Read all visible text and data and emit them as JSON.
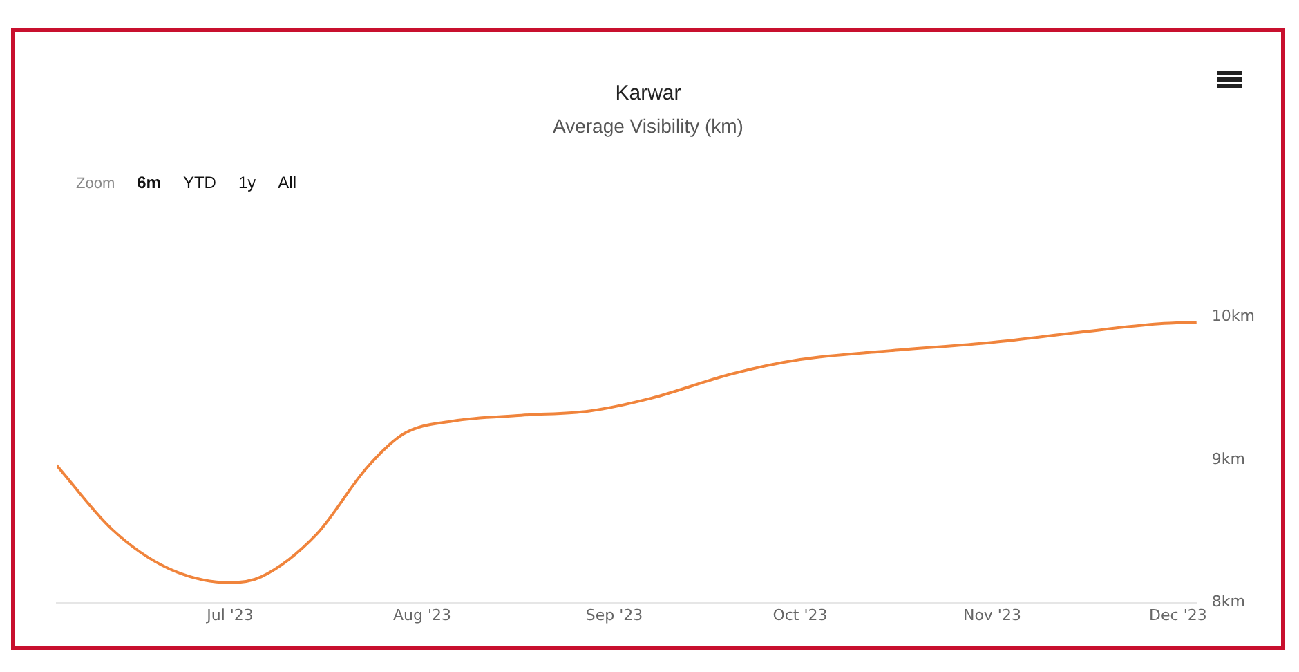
{
  "chart_data": {
    "type": "line",
    "title": "Karwar",
    "subtitle": "Average Visibility (km)",
    "annotations": [
      "Zoom",
      "6m",
      "YTD",
      "1y",
      "All"
    ],
    "x": [
      "2023-06-03",
      "2023-06-12",
      "2023-06-21",
      "2023-07-01",
      "2023-07-06",
      "2023-07-15",
      "2023-07-23",
      "2023-07-29",
      "2023-08-06",
      "2023-08-17",
      "2023-08-28",
      "2023-09-07",
      "2023-09-20",
      "2023-10-01",
      "2023-10-15",
      "2023-11-01",
      "2023-11-15",
      "2023-11-28",
      "2023-12-04"
    ],
    "series": [
      {
        "color": "#f0843c",
        "values": [
          8.96,
          8.51,
          8.24,
          8.14,
          8.18,
          8.48,
          8.94,
          9.18,
          9.27,
          9.31,
          9.34,
          9.43,
          9.6,
          9.7,
          9.76,
          9.82,
          9.89,
          9.95,
          9.96
        ]
      }
    ],
    "xlim": [
      "2023-06-03",
      "2023-12-04"
    ],
    "xticks": [
      {
        "value": "2023-07-01",
        "label": "Jul '23"
      },
      {
        "value": "2023-08-01",
        "label": "Aug '23"
      },
      {
        "value": "2023-09-01",
        "label": "Sep '23"
      },
      {
        "value": "2023-10-01",
        "label": "Oct '23"
      },
      {
        "value": "2023-11-01",
        "label": "Nov '23"
      },
      {
        "value": "2023-12-01",
        "label": "Dec '23"
      }
    ],
    "ylim": [
      8,
      10
    ],
    "yticks": [
      {
        "value": 8,
        "label": "8km"
      },
      {
        "value": 9,
        "label": "9km"
      },
      {
        "value": 10,
        "label": "10km"
      }
    ]
  }
}
